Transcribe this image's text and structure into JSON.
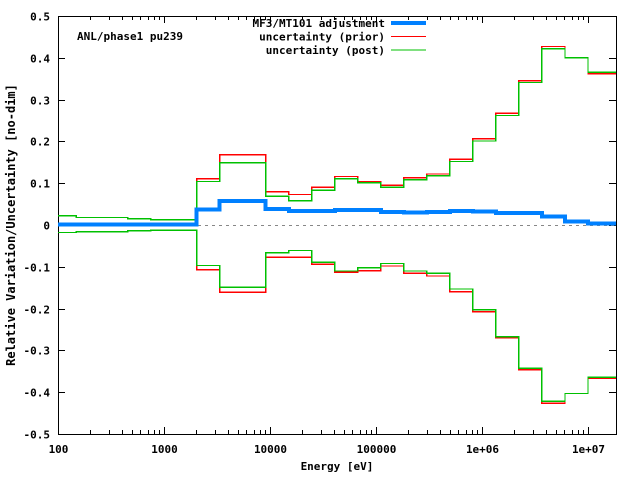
{
  "title": "ANL/phase1 pu239",
  "colors": {
    "adjustment": "#0080ff",
    "prior": "#ff0000",
    "post": "#00c000",
    "zero_line": "#878787",
    "frame": "#000000",
    "background": "#ffffff",
    "text": "#000000"
  },
  "legend": {
    "position": "top-right-inside",
    "entries": [
      {
        "label": "MF3/MT101 adjustment",
        "series": "adjustment"
      },
      {
        "label": "uncertainty (prior)",
        "series": "prior"
      },
      {
        "label": "uncertainty (post)",
        "series": "post"
      }
    ]
  },
  "axes": {
    "xlabel": "Energy [eV]",
    "ylabel": "Relative Variation/Uncertainty [no-dim]",
    "x_scale": "log",
    "xlim": [
      100,
      18380000
    ],
    "ylim": [
      -0.5,
      0.5
    ],
    "grid": "off",
    "x_ticks": [
      {
        "value": 100,
        "label": "100"
      },
      {
        "value": 1000,
        "label": "1000"
      },
      {
        "value": 10000,
        "label": "10000"
      },
      {
        "value": 100000,
        "label": "100000"
      },
      {
        "value": 1000000,
        "label": "1e+06"
      },
      {
        "value": 10000000,
        "label": "1e+07"
      }
    ],
    "y_ticks": [
      {
        "value": 0.5,
        "label": "0.5"
      },
      {
        "value": 0.4,
        "label": "0.4"
      },
      {
        "value": 0.3,
        "label": "0.3"
      },
      {
        "value": 0.2,
        "label": "0.2"
      },
      {
        "value": 0.1,
        "label": "0.1"
      },
      {
        "value": 0,
        "label": "0"
      },
      {
        "value": -0.1,
        "label": "-0.1"
      },
      {
        "value": -0.2,
        "label": "-0.2"
      },
      {
        "value": -0.3,
        "label": "-0.3"
      },
      {
        "value": -0.4,
        "label": "-0.4"
      },
      {
        "value": -0.5,
        "label": "-0.5"
      }
    ]
  },
  "chart_data": {
    "type": "line",
    "style": "binned-step-histogram",
    "zero_reference_line": 0,
    "bin_edges_eV": [
      100,
      148.6,
      304.3,
      454.0,
      748.5,
      1234.1,
      2034.7,
      3354.6,
      5530.8,
      9118.8,
      15034,
      24788,
      40868,
      67380,
      111090,
      183156,
      301974,
      497871,
      820850,
      1353400,
      2231300,
      3678800,
      6065300,
      10000000,
      18380000
    ],
    "series": [
      {
        "name": "uncertainty (prior) upper",
        "color_key": "prior",
        "line_width": 1.4,
        "values": [
          0.022,
          0.018,
          0.018,
          0.015,
          0.013,
          0.013,
          0.111,
          0.168,
          0.168,
          0.08,
          0.073,
          0.09,
          0.116,
          0.104,
          0.095,
          0.113,
          0.122,
          0.157,
          0.206,
          0.267,
          0.345,
          0.427,
          0.4,
          0.362
        ]
      },
      {
        "name": "uncertainty (prior) lower",
        "color_key": "prior",
        "line_width": 1.4,
        "values": [
          -0.018,
          -0.016,
          -0.016,
          -0.014,
          -0.013,
          -0.013,
          -0.107,
          -0.161,
          -0.161,
          -0.077,
          -0.077,
          -0.094,
          -0.113,
          -0.109,
          -0.098,
          -0.115,
          -0.122,
          -0.16,
          -0.208,
          -0.27,
          -0.346,
          -0.426,
          -0.403,
          -0.367
        ]
      },
      {
        "name": "uncertainty (post) upper",
        "color_key": "post",
        "line_width": 1.4,
        "values": [
          0.022,
          0.018,
          0.018,
          0.015,
          0.013,
          0.013,
          0.104,
          0.149,
          0.149,
          0.069,
          0.058,
          0.083,
          0.111,
          0.101,
          0.09,
          0.108,
          0.118,
          0.152,
          0.201,
          0.262,
          0.341,
          0.422,
          0.4,
          0.365
        ]
      },
      {
        "name": "uncertainty (post) lower",
        "color_key": "post",
        "line_width": 1.4,
        "values": [
          -0.018,
          -0.016,
          -0.016,
          -0.014,
          -0.013,
          -0.013,
          -0.097,
          -0.149,
          -0.149,
          -0.066,
          -0.061,
          -0.089,
          -0.11,
          -0.102,
          -0.092,
          -0.11,
          -0.115,
          -0.153,
          -0.203,
          -0.267,
          -0.343,
          -0.422,
          -0.403,
          -0.364
        ]
      },
      {
        "name": "MF3/MT101 adjustment",
        "color_key": "adjustment",
        "line_width": 4,
        "values": [
          0.001,
          0.001,
          0.001,
          0.001,
          0.001,
          0.001,
          0.037,
          0.058,
          0.058,
          0.038,
          0.033,
          0.034,
          0.036,
          0.036,
          0.031,
          0.03,
          0.031,
          0.034,
          0.032,
          0.029,
          0.029,
          0.02,
          0.008,
          0.004
        ]
      }
    ]
  }
}
